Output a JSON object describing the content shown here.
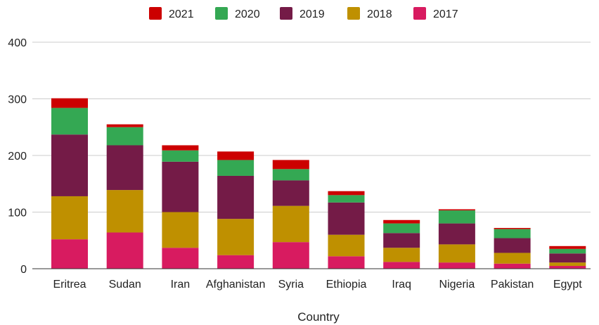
{
  "chart_data": {
    "type": "bar",
    "stacked": true,
    "categories": [
      "Eritrea",
      "Sudan",
      "Iran",
      "Afghanistan",
      "Syria",
      "Ethiopia",
      "Iraq",
      "Nigeria",
      "Pakistan",
      "Egypt"
    ],
    "series": [
      {
        "name": "2017",
        "color": "#d81b60",
        "values": [
          52,
          64,
          37,
          24,
          47,
          22,
          12,
          11,
          9,
          5
        ]
      },
      {
        "name": "2018",
        "color": "#bf9000",
        "values": [
          76,
          75,
          63,
          64,
          64,
          38,
          25,
          32,
          19,
          6
        ]
      },
      {
        "name": "2019",
        "color": "#741b47",
        "values": [
          109,
          79,
          89,
          76,
          45,
          57,
          26,
          37,
          26,
          16
        ]
      },
      {
        "name": "2020",
        "color": "#34a853",
        "values": [
          47,
          32,
          20,
          28,
          20,
          13,
          17,
          23,
          16,
          8
        ]
      },
      {
        "name": "2021",
        "color": "#cc0000",
        "values": [
          17,
          5,
          9,
          15,
          16,
          7,
          6,
          2,
          2,
          5
        ]
      }
    ],
    "legend_order": [
      "2021",
      "2020",
      "2019",
      "2018",
      "2017"
    ],
    "legend_position": "top",
    "xlabel": "Country",
    "ylabel": "",
    "title": "",
    "ylim": [
      0,
      400
    ],
    "yticks": [
      0,
      100,
      200,
      300,
      400
    ],
    "grid": true,
    "colors": {
      "gridline": "#cccccc",
      "axis": "#333333",
      "text": "#222222"
    }
  }
}
